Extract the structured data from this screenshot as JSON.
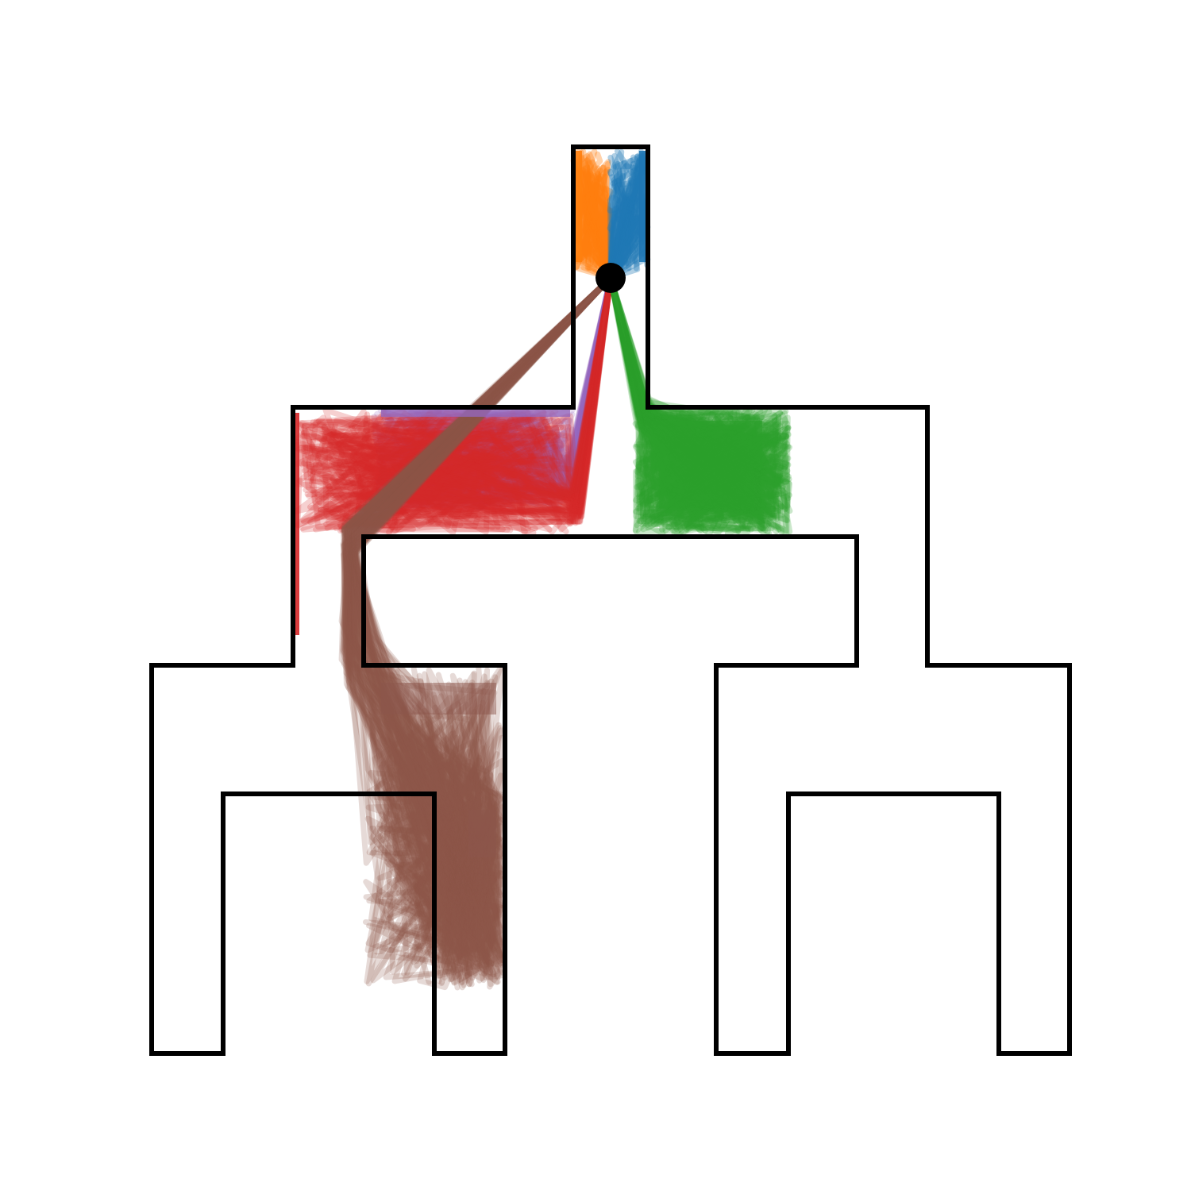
{
  "diagram": {
    "start_marker": "start-dot",
    "colors": {
      "outline": "#000000",
      "start": "#000000"
    },
    "trajectory_groups": [
      {
        "name": "orange",
        "color": "#ff7f0e"
      },
      {
        "name": "blue",
        "color": "#1f77b4"
      },
      {
        "name": "purple",
        "color": "#9467bd"
      },
      {
        "name": "red",
        "color": "#d62728"
      },
      {
        "name": "green",
        "color": "#2ca02c"
      },
      {
        "name": "brown",
        "color": "#8c564b"
      }
    ]
  }
}
